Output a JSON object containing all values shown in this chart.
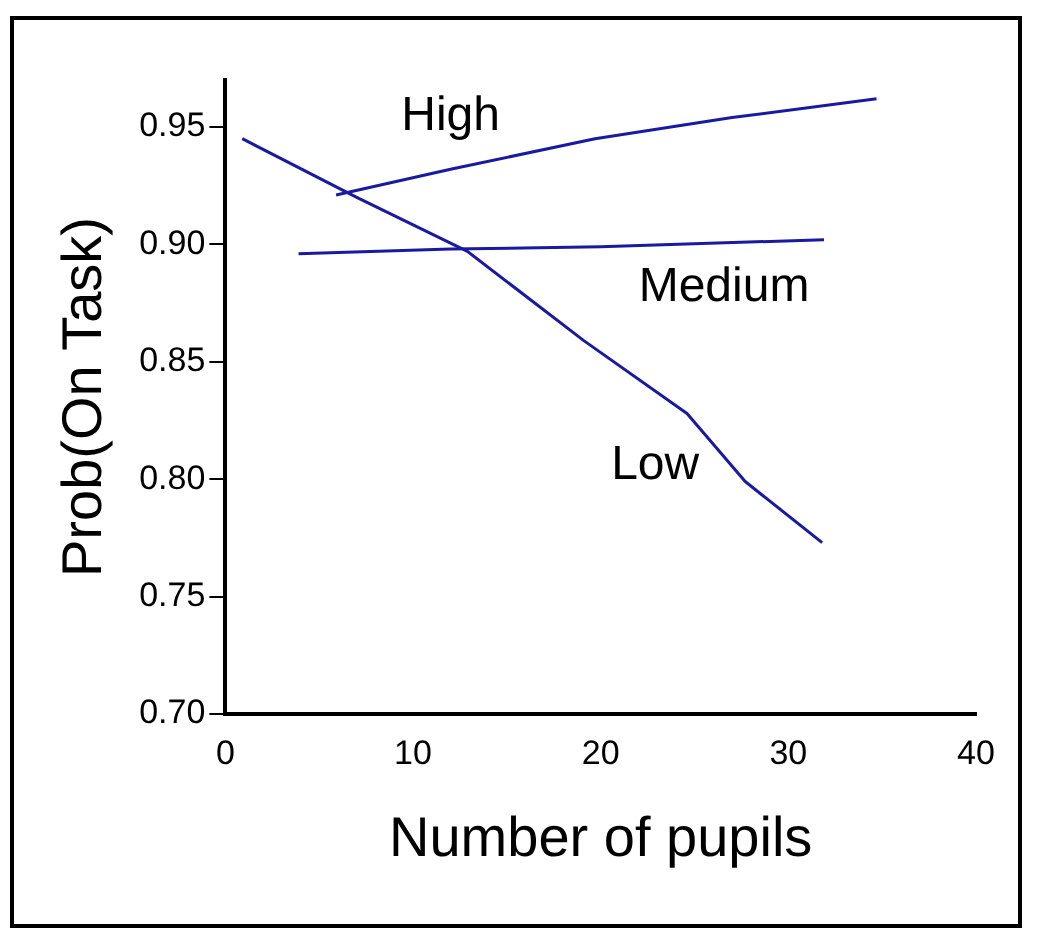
{
  "chart_data": {
    "type": "line",
    "xlabel": "Number of pupils",
    "ylabel": "Prob(On Task)",
    "series": [
      {
        "name": "High",
        "color": "#1a1aa0",
        "x": [
          5.9,
          12,
          19.7,
          27,
          34.7
        ],
        "values": [
          0.921,
          0.932,
          0.945,
          0.954,
          0.962
        ]
      },
      {
        "name": "Medium",
        "color": "#1a1aa0",
        "x": [
          3.9,
          12,
          20,
          31.9
        ],
        "values": [
          0.896,
          0.898,
          0.899,
          0.902
        ]
      },
      {
        "name": "Low",
        "color": "#1a1aa0",
        "x": [
          0.9,
          7,
          12.9,
          19.1,
          24.6,
          27.7,
          31.8
        ],
        "values": [
          0.945,
          0.92,
          0.897,
          0.859,
          0.828,
          0.799,
          0.773
        ]
      }
    ],
    "xlim": [
      0,
      40
    ],
    "xticks": [
      0,
      10,
      20,
      30,
      40
    ],
    "ylim": [
      0.7,
      0.97
    ],
    "yticks": [
      {
        "value": 0.7,
        "label": "0.70"
      },
      0.75,
      {
        "value": 0.8,
        "label": "0.80"
      },
      0.85,
      {
        "value": 0.9,
        "label": "0.90"
      },
      0.95
    ],
    "grid": false,
    "legend": false,
    "marker": "none",
    "line_style": "solid"
  }
}
